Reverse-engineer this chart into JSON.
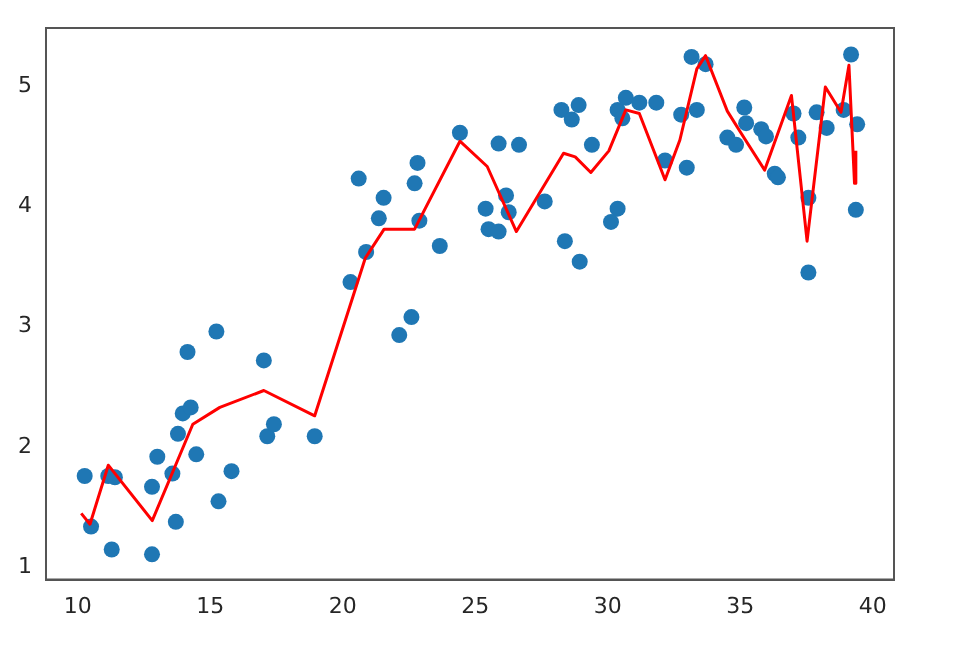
{
  "chart_data": {
    "type": "scatter",
    "xlim": [
      8.8,
      40.8
    ],
    "ylim": [
      0.9,
      5.48
    ],
    "xticks": [
      10,
      15,
      20,
      25,
      30,
      35,
      40
    ],
    "yticks": [
      1,
      2,
      3,
      4,
      5
    ],
    "grid": false,
    "legend": false,
    "series": [
      {
        "type": "scatter",
        "marker": "circle",
        "color": "#1f77b4",
        "x": [
          10.26,
          10.5,
          11.15,
          11.4,
          11.28,
          12.8,
          12.8,
          13.0,
          13.57,
          13.7,
          13.78,
          13.96,
          14.26,
          14.14,
          14.47,
          15.23,
          15.31,
          15.8,
          17.02,
          17.15,
          17.4,
          18.94,
          20.29,
          20.6,
          20.88,
          21.36,
          21.54,
          22.13,
          22.59,
          22.71,
          22.82,
          22.89,
          23.66,
          24.42,
          25.39,
          25.5,
          25.88,
          25.88,
          26.16,
          26.26,
          26.65,
          27.62,
          28.25,
          28.38,
          28.64,
          28.9,
          28.94,
          29.4,
          30.12,
          30.37,
          30.37,
          30.55,
          30.68,
          31.19,
          31.83,
          32.16,
          32.77,
          32.98,
          33.16,
          33.36,
          33.69,
          34.51,
          34.84,
          35.15,
          35.22,
          35.79,
          35.97,
          36.3,
          36.42,
          37.01,
          37.19,
          37.57,
          37.57,
          37.88,
          38.26,
          38.9,
          39.18,
          39.41,
          39.36
        ],
        "values": [
          1.76,
          1.34,
          1.76,
          1.75,
          1.15,
          1.11,
          1.67,
          1.92,
          1.78,
          1.38,
          2.11,
          2.28,
          2.33,
          2.79,
          1.94,
          2.96,
          1.55,
          1.8,
          2.72,
          2.09,
          2.19,
          2.09,
          3.37,
          4.23,
          3.62,
          3.9,
          4.07,
          2.93,
          3.08,
          4.19,
          4.36,
          3.88,
          3.67,
          4.61,
          3.98,
          3.81,
          3.79,
          4.52,
          4.09,
          3.95,
          4.51,
          4.04,
          4.8,
          3.71,
          4.72,
          4.84,
          3.54,
          4.51,
          3.87,
          3.98,
          4.8,
          4.73,
          4.9,
          4.86,
          4.86,
          4.38,
          4.76,
          4.32,
          5.24,
          4.8,
          5.18,
          4.57,
          4.51,
          4.82,
          4.69,
          4.64,
          4.58,
          4.27,
          4.24,
          4.77,
          4.57,
          4.07,
          3.45,
          4.78,
          4.65,
          4.8,
          5.26,
          4.68,
          3.97
        ]
      },
      {
        "type": "line",
        "marker": "none",
        "line_style": "solid",
        "color": "#ff0000",
        "x": [
          10.13,
          10.46,
          11.15,
          12.81,
          14.34,
          15.36,
          17.02,
          18.94,
          20.85,
          21.56,
          22.71,
          24.42,
          25.45,
          26.55,
          28.33,
          28.77,
          29.36,
          30.04,
          30.68,
          31.19,
          32.16,
          32.72,
          33.36,
          33.69,
          34.51,
          35.02,
          35.92,
          36.93,
          37.52,
          38.21,
          38.8,
          39.1,
          39.31,
          39.36
        ],
        "values": [
          1.45,
          1.36,
          1.85,
          1.39,
          2.19,
          2.33,
          2.47,
          2.26,
          3.57,
          3.81,
          3.81,
          4.54,
          4.33,
          3.79,
          4.44,
          4.41,
          4.28,
          4.46,
          4.8,
          4.77,
          4.22,
          4.55,
          5.14,
          5.25,
          4.79,
          4.61,
          4.3,
          4.92,
          3.71,
          4.99,
          4.78,
          5.17,
          4.19,
          4.46
        ]
      }
    ]
  }
}
